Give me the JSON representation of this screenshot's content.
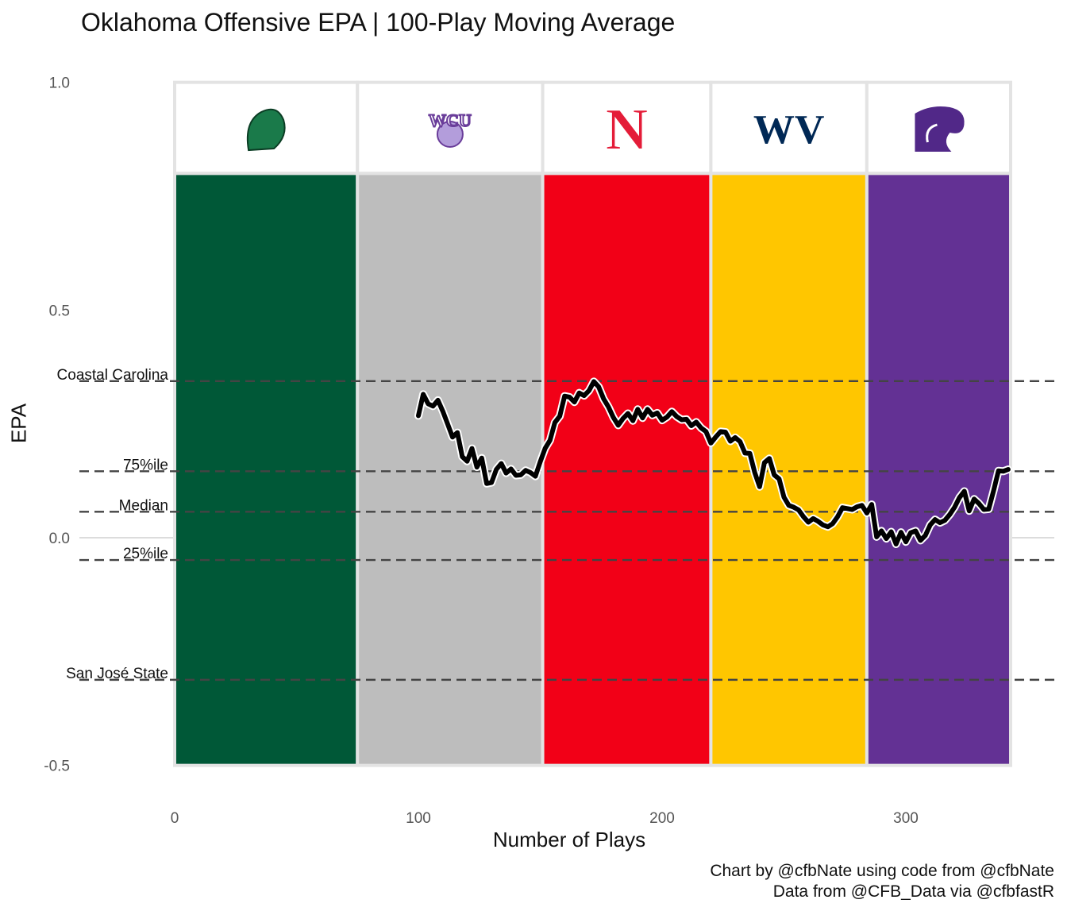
{
  "chart_data": {
    "type": "line",
    "title": "Oklahoma Offensive EPA | 100-Play Moving Average",
    "xlabel": "Number of Plays",
    "ylabel": "EPA",
    "xlim": [
      0,
      345
    ],
    "ylim": [
      -0.5,
      1.0
    ],
    "x_ticks": [
      0,
      100,
      200,
      300
    ],
    "y_ticks": [
      -0.5,
      0.0,
      0.5,
      1.0
    ],
    "y_tick_labels": [
      "-0.5",
      "0.0",
      "0.5",
      "1.0"
    ],
    "caption": [
      "Chart by @cfbNate using code from @cfbNate",
      "Data from @CFB_Data via @cfbfastR"
    ],
    "games": [
      {
        "opponent_icon": "tulane-green-wave-logo-icon",
        "start": 0,
        "end": 75,
        "color": "#005837",
        "logo_color": "#1a7a4a"
      },
      {
        "opponent_icon": "wcu-catamounts-logo-icon",
        "start": 75,
        "end": 151,
        "color": "#BDBDBD",
        "logo_color": "#6a3d9a",
        "logo_text": "WCU"
      },
      {
        "opponent_icon": "nebraska-n-logo-icon",
        "start": 151,
        "end": 220,
        "color": "#F20017",
        "logo_color": "#e41c38",
        "logo_text": "N"
      },
      {
        "opponent_icon": "west-virginia-wv-logo-icon",
        "start": 220,
        "end": 284,
        "color": "#FFC600",
        "logo_color": "#002855",
        "logo_text": "WV"
      },
      {
        "opponent_icon": "kansas-state-wildcat-logo-icon",
        "start": 284,
        "end": 343,
        "color": "#633194",
        "logo_color": "#512888"
      }
    ],
    "reference_lines": [
      {
        "label": "Coastal Carolina",
        "y": 0.344
      },
      {
        "label": "75%ile",
        "y": 0.146
      },
      {
        "label": "Median",
        "y": 0.057
      },
      {
        "label": "25%ile",
        "y": -0.049
      },
      {
        "label": "San José State",
        "y": -0.312
      }
    ],
    "series": [
      {
        "x": [
          100,
          102,
          104,
          106,
          108,
          110,
          112,
          114,
          116,
          118,
          120,
          122,
          124,
          126,
          128,
          130,
          132,
          134,
          136,
          138,
          140,
          142,
          144,
          146,
          148,
          150,
          152,
          154,
          156,
          158,
          160,
          162,
          164,
          166,
          168,
          170,
          172,
          174,
          176,
          178,
          180,
          182,
          184,
          186,
          188,
          190,
          192,
          194,
          196,
          198,
          200,
          202,
          204,
          206,
          208,
          210,
          212,
          214,
          216,
          218,
          220,
          222,
          224,
          226,
          228,
          230,
          232,
          234,
          236,
          238,
          240,
          242,
          244,
          246,
          248,
          250,
          252,
          254,
          256,
          258,
          260,
          262,
          264,
          266,
          268,
          270,
          272,
          274,
          276,
          278,
          280,
          282,
          284,
          286,
          288,
          290,
          292,
          294,
          296,
          298,
          300,
          302,
          304,
          306,
          308,
          310,
          312,
          314,
          316,
          318,
          320,
          322,
          324,
          326,
          328,
          330,
          332,
          334,
          336,
          338,
          340,
          342
        ],
        "values": [
          0.268,
          0.315,
          0.294,
          0.289,
          0.302,
          0.278,
          0.25,
          0.221,
          0.231,
          0.178,
          0.168,
          0.196,
          0.155,
          0.175,
          0.119,
          0.121,
          0.15,
          0.163,
          0.142,
          0.151,
          0.137,
          0.138,
          0.148,
          0.143,
          0.135,
          0.167,
          0.196,
          0.214,
          0.253,
          0.267,
          0.311,
          0.309,
          0.298,
          0.318,
          0.312,
          0.323,
          0.343,
          0.331,
          0.305,
          0.287,
          0.264,
          0.247,
          0.262,
          0.273,
          0.257,
          0.282,
          0.263,
          0.282,
          0.269,
          0.274,
          0.258,
          0.265,
          0.277,
          0.266,
          0.259,
          0.26,
          0.246,
          0.254,
          0.241,
          0.233,
          0.208,
          0.221,
          0.233,
          0.232,
          0.212,
          0.22,
          0.211,
          0.186,
          0.185,
          0.143,
          0.112,
          0.165,
          0.174,
          0.138,
          0.129,
          0.089,
          0.071,
          0.067,
          0.061,
          0.046,
          0.034,
          0.042,
          0.036,
          0.028,
          0.024,
          0.031,
          0.046,
          0.066,
          0.064,
          0.062,
          0.068,
          0.071,
          0.054,
          0.073,
          0.002,
          0.015,
          -0.002,
          0.013,
          -0.014,
          0.012,
          -0.009,
          0.011,
          0.015,
          -0.006,
          0.005,
          0.028,
          0.04,
          0.033,
          0.038,
          0.051,
          0.067,
          0.088,
          0.102,
          0.059,
          0.085,
          0.075,
          0.062,
          0.063,
          0.103,
          0.147,
          0.146,
          0.15
        ]
      }
    ]
  }
}
